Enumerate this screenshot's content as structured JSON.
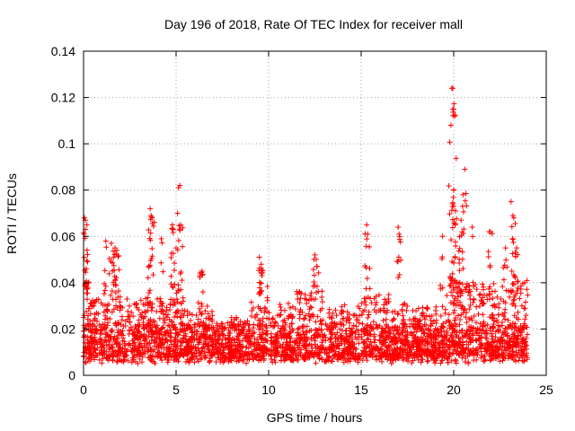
{
  "chart_data": {
    "type": "scatter",
    "title": "Day 196 of 2018, Rate Of TEC Index for receiver mall",
    "xlabel": "GPS time / hours",
    "ylabel": "ROTI / TECUs",
    "xlim": [
      0,
      25
    ],
    "ylim": [
      0,
      0.14
    ],
    "x_ticks": [
      0,
      5,
      10,
      15,
      20,
      25
    ],
    "x_tick_labels": [
      "0",
      "5",
      "10",
      "15",
      "20",
      "25"
    ],
    "y_ticks": [
      0,
      0.02,
      0.04,
      0.06,
      0.08,
      0.1,
      0.12,
      0.14
    ],
    "y_tick_labels": [
      "0",
      "0.02",
      "0.04",
      "0.06",
      "0.08",
      "0.1",
      "0.12",
      "0.14"
    ],
    "grid": true,
    "marker": "+",
    "color": "#ff0000",
    "series": [
      {
        "name": "ROTI",
        "baseline_band": {
          "x_range": [
            0,
            24
          ],
          "y_range": [
            0.003,
            0.035
          ]
        },
        "notable_points": {
          "x": [
            0.05,
            0.1,
            0.1,
            0.15,
            1.2,
            1.5,
            1.7,
            1.8,
            3.6,
            3.65,
            3.7,
            4.2,
            4.8,
            4.85,
            5.0,
            5.2,
            5.25,
            6.4,
            9.5,
            9.6,
            12.5,
            12.6,
            15.3,
            15.35,
            17.0,
            17.05,
            19.4,
            19.9,
            19.95,
            20.0,
            20.05,
            19.85,
            20.0,
            20.1,
            20.6,
            20.5,
            20.4,
            21.0,
            22.0,
            22.8,
            23.1,
            23.2,
            23.25,
            23.4
          ],
          "y": [
            0.068,
            0.067,
            0.063,
            0.046,
            0.058,
            0.057,
            0.055,
            0.054,
            0.072,
            0.069,
            0.068,
            0.059,
            0.065,
            0.063,
            0.055,
            0.082,
            0.065,
            0.045,
            0.051,
            0.048,
            0.052,
            0.047,
            0.065,
            0.061,
            0.064,
            0.061,
            0.06,
            0.124,
            0.124,
            0.115,
            0.112,
            0.108,
            0.08,
            0.071,
            0.089,
            0.078,
            0.067,
            0.064,
            0.062,
            0.055,
            0.075,
            0.069,
            0.068,
            0.055
          ]
        }
      }
    ]
  }
}
